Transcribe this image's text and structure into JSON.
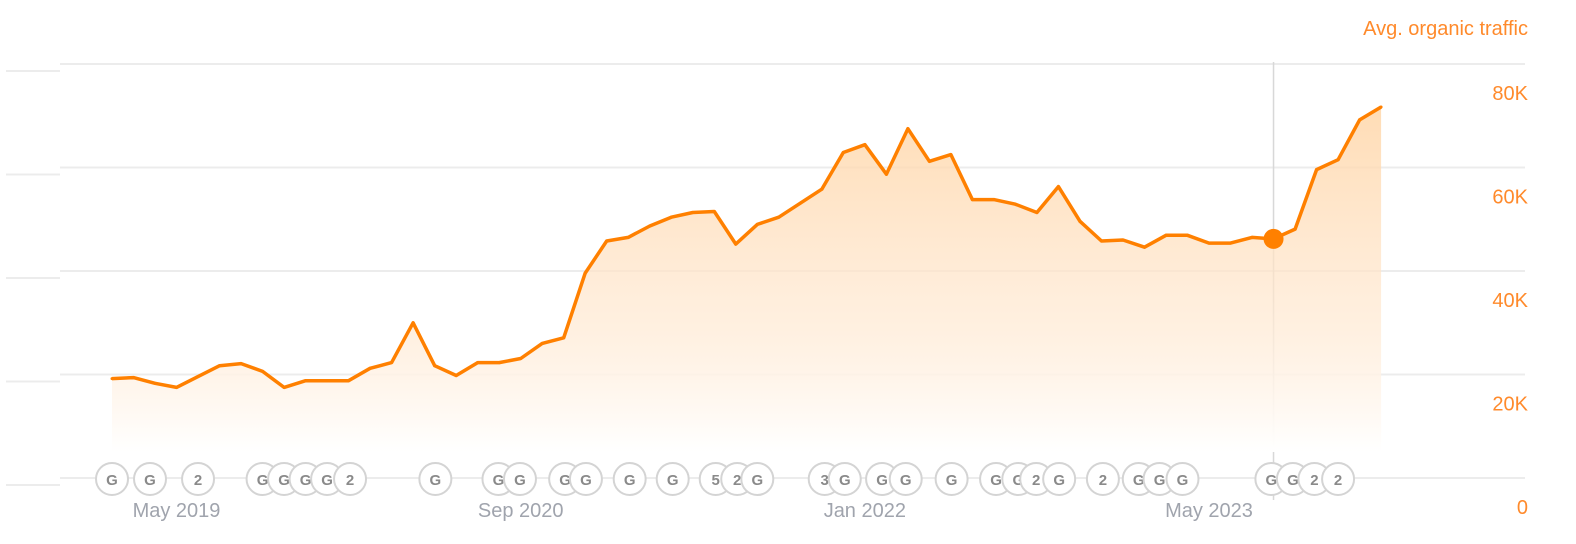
{
  "chart_data": {
    "type": "area",
    "title": "",
    "ylabel": "Avg. organic traffic",
    "xlabel": "",
    "ylim": [
      0,
      80000
    ],
    "y_ticks": [
      {
        "value": 0,
        "label": "0"
      },
      {
        "value": 20000,
        "label": "20K"
      },
      {
        "value": 40000,
        "label": "40K"
      },
      {
        "value": 60000,
        "label": "60K"
      },
      {
        "value": 80000,
        "label": "80K"
      }
    ],
    "x_ticks": [
      {
        "date": "2019-05",
        "label": "May 2019"
      },
      {
        "date": "2020-09",
        "label": "Sep 2020"
      },
      {
        "date": "2022-01",
        "label": "Jan 2022"
      },
      {
        "date": "2023-05",
        "label": "May 2023"
      }
    ],
    "grid": true,
    "y_axis_side": "right",
    "color": "#ff8000",
    "x_start": "2019-02",
    "x_end": "2024-01",
    "highlight": {
      "date": "2023-08",
      "value": 46200
    },
    "values": [
      19200,
      19400,
      18300,
      17500,
      19600,
      21700,
      22100,
      20600,
      17500,
      18800,
      18800,
      18800,
      21200,
      22300,
      30000,
      21700,
      19800,
      22300,
      22300,
      23100,
      26000,
      27100,
      39600,
      45800,
      46500,
      48700,
      50400,
      51300,
      51500,
      45200,
      49000,
      50400,
      53100,
      55800,
      62900,
      64400,
      58700,
      67500,
      61200,
      62500,
      53800,
      53800,
      52900,
      51300,
      56300,
      49600,
      45800,
      46000,
      44600,
      46900,
      46900,
      45400,
      45400,
      46500,
      46200,
      48100,
      59600,
      61500,
      69200,
      71700
    ],
    "annotations": [
      {
        "date": "2019-02-01",
        "label": "G"
      },
      {
        "date": "2019-03-24",
        "label": "G"
      },
      {
        "date": "2019-06-01",
        "label": "2"
      },
      {
        "date": "2019-09-01",
        "label": "G"
      },
      {
        "date": "2019-10-01",
        "label": "G"
      },
      {
        "date": "2019-11-01",
        "label": "G"
      },
      {
        "date": "2019-12-01",
        "label": "G"
      },
      {
        "date": "2020-01-03",
        "label": "2"
      },
      {
        "date": "2020-05-02",
        "label": "G"
      },
      {
        "date": "2020-07-30",
        "label": "G"
      },
      {
        "date": "2020-08-30",
        "label": "G"
      },
      {
        "date": "2020-11-03",
        "label": "G"
      },
      {
        "date": "2020-12-02",
        "label": "G"
      },
      {
        "date": "2021-02-03",
        "label": "G"
      },
      {
        "date": "2021-04-03",
        "label": "G"
      },
      {
        "date": "2021-06-03",
        "label": "5"
      },
      {
        "date": "2021-07-03",
        "label": "2"
      },
      {
        "date": "2021-08-01",
        "label": "G"
      },
      {
        "date": "2021-11-05",
        "label": "3"
      },
      {
        "date": "2021-12-03",
        "label": "G"
      },
      {
        "date": "2022-01-25",
        "label": "G"
      },
      {
        "date": "2022-02-28",
        "label": "G"
      },
      {
        "date": "2022-05-02",
        "label": "G"
      },
      {
        "date": "2022-07-04",
        "label": "G"
      },
      {
        "date": "2022-08-05",
        "label": "G"
      },
      {
        "date": "2022-08-30",
        "label": "2"
      },
      {
        "date": "2022-10-02",
        "label": "G"
      },
      {
        "date": "2022-12-03",
        "label": "2"
      },
      {
        "date": "2023-01-23",
        "label": "G"
      },
      {
        "date": "2023-02-22",
        "label": "G"
      },
      {
        "date": "2023-03-24",
        "label": "G"
      },
      {
        "date": "2023-07-28",
        "label": "G"
      },
      {
        "date": "2023-08-28",
        "label": "G"
      },
      {
        "date": "2023-09-28",
        "label": "2"
      },
      {
        "date": "2023-10-31",
        "label": "2"
      }
    ]
  }
}
